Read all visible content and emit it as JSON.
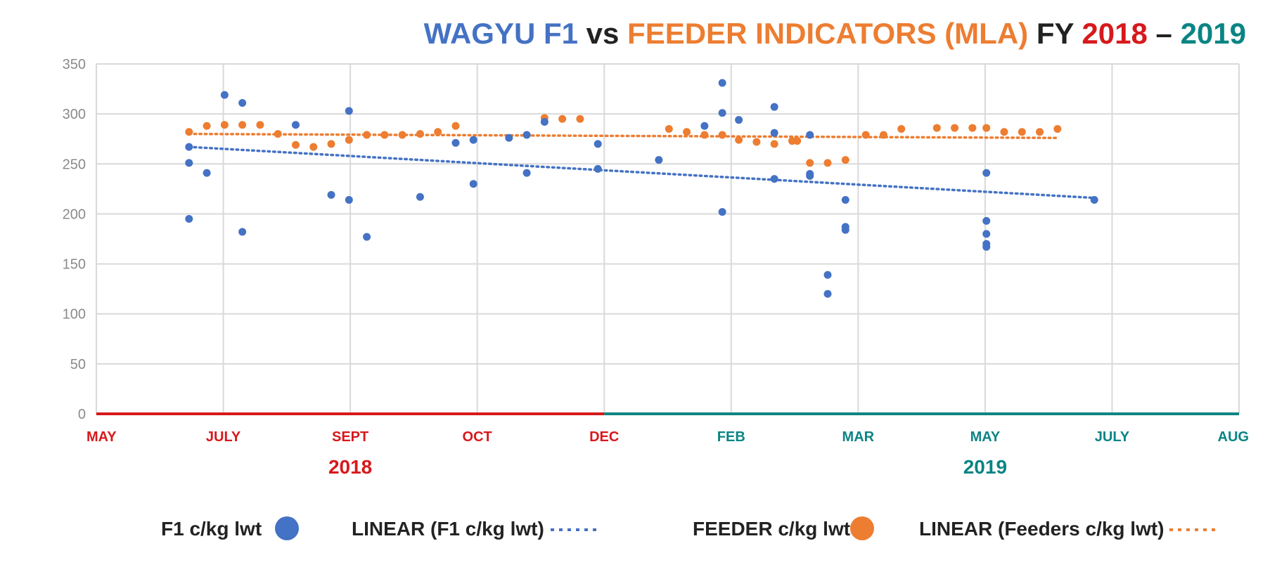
{
  "colors": {
    "f1": "#4472c4",
    "feeder": "#ed7d31",
    "year2018": "#d7191c",
    "year2019": "#0b8484",
    "dark": "#222222",
    "grid": "#d9d9d9",
    "tick": "#8a8a8a"
  },
  "title": {
    "part1": "WAGYU F1",
    "part2": " vs ",
    "part3": "FEEDER INDICATORS (MLA)",
    "part4": "FY ",
    "part5": "2018",
    "part6": " – ",
    "part7": "2019"
  },
  "chart_data": {
    "type": "scatter",
    "xlabel": "",
    "ylabel": "",
    "ylim": [
      0,
      350
    ],
    "yticks": [
      0,
      50,
      100,
      150,
      200,
      250,
      300,
      350
    ],
    "grid": true,
    "legend_position": "bottom",
    "x_ticks": [
      {
        "label": "MAY",
        "m": 0,
        "fy": "2018"
      },
      {
        "label": "JULY",
        "m": 1,
        "fy": "2018"
      },
      {
        "label": "SEPT",
        "m": 2,
        "fy": "2018"
      },
      {
        "label": "OCT",
        "m": 3,
        "fy": "2018"
      },
      {
        "label": "DEC",
        "m": 4,
        "fy": "2018"
      },
      {
        "label": "FEB",
        "m": 5,
        "fy": "2019"
      },
      {
        "label": "MAR",
        "m": 6,
        "fy": "2019"
      },
      {
        "label": "MAY",
        "m": 7,
        "fy": "2019"
      },
      {
        "label": "JULY",
        "m": 8,
        "fy": "2019"
      },
      {
        "label": "AUG",
        "m": 9,
        "fy": "2019"
      }
    ],
    "year_labels": [
      {
        "label": "2018",
        "m": 2
      },
      {
        "label": "2019",
        "m": 7
      }
    ],
    "year_split": 4,
    "series": [
      {
        "name": "F1 c/kg lwt",
        "color": "#4472c4",
        "points": [
          [
            0.73,
            267
          ],
          [
            0.73,
            251
          ],
          [
            0.73,
            195
          ],
          [
            0.87,
            241
          ],
          [
            1.01,
            319
          ],
          [
            1.15,
            311
          ],
          [
            1.15,
            182
          ],
          [
            1.57,
            289
          ],
          [
            1.85,
            219
          ],
          [
            1.99,
            303
          ],
          [
            1.99,
            214
          ],
          [
            2.13,
            177
          ],
          [
            2.55,
            217
          ],
          [
            2.83,
            271
          ],
          [
            2.97,
            274
          ],
          [
            2.97,
            230
          ],
          [
            3.25,
            276
          ],
          [
            3.39,
            279
          ],
          [
            3.39,
            241
          ],
          [
            3.53,
            292
          ],
          [
            3.95,
            270
          ],
          [
            3.95,
            245
          ],
          [
            4.43,
            254
          ],
          [
            4.79,
            288
          ],
          [
            4.93,
            331
          ],
          [
            4.93,
            301
          ],
          [
            4.93,
            202
          ],
          [
            5.06,
            294
          ],
          [
            5.34,
            307
          ],
          [
            5.34,
            281
          ],
          [
            5.34,
            235
          ],
          [
            5.62,
            279
          ],
          [
            5.62,
            240
          ],
          [
            5.62,
            238
          ],
          [
            5.76,
            139
          ],
          [
            5.76,
            120
          ],
          [
            5.9,
            214
          ],
          [
            5.9,
            187
          ],
          [
            5.9,
            184
          ],
          [
            7.01,
            241
          ],
          [
            7.01,
            193
          ],
          [
            7.01,
            180
          ],
          [
            7.01,
            170
          ],
          [
            7.01,
            167
          ],
          [
            7.86,
            214
          ]
        ]
      },
      {
        "name": "FEEDER c/kg lwt",
        "color": "#ed7d31",
        "points": [
          [
            0.73,
            282
          ],
          [
            0.87,
            288
          ],
          [
            1.01,
            289
          ],
          [
            1.15,
            289
          ],
          [
            1.29,
            289
          ],
          [
            1.43,
            280
          ],
          [
            1.57,
            269
          ],
          [
            1.71,
            267
          ],
          [
            1.85,
            270
          ],
          [
            1.99,
            274
          ],
          [
            2.13,
            279
          ],
          [
            2.27,
            279
          ],
          [
            2.41,
            279
          ],
          [
            2.55,
            280
          ],
          [
            2.69,
            282
          ],
          [
            2.83,
            288
          ],
          [
            3.53,
            296
          ],
          [
            3.67,
            295
          ],
          [
            3.81,
            295
          ],
          [
            4.51,
            285
          ],
          [
            4.65,
            282
          ],
          [
            4.79,
            279
          ],
          [
            4.93,
            279
          ],
          [
            5.06,
            274
          ],
          [
            5.2,
            272
          ],
          [
            5.34,
            270
          ],
          [
            5.48,
            273
          ],
          [
            5.52,
            273
          ],
          [
            5.62,
            251
          ],
          [
            5.76,
            251
          ],
          [
            5.9,
            254
          ],
          [
            6.06,
            279
          ],
          [
            6.2,
            279
          ],
          [
            6.34,
            285
          ],
          [
            6.62,
            286
          ],
          [
            6.76,
            286
          ],
          [
            6.9,
            286
          ],
          [
            7.01,
            286
          ],
          [
            7.15,
            282
          ],
          [
            7.29,
            282
          ],
          [
            7.43,
            282
          ],
          [
            7.57,
            285
          ]
        ]
      }
    ],
    "trendlines": [
      {
        "name": "LINEAR (F1 c/kg lwt)",
        "color": "#4472c4",
        "x0": 0.73,
        "y0": 267,
        "x1": 7.86,
        "y1": 216
      },
      {
        "name": "LINEAR (Feeders c/kg lwt)",
        "color": "#ed7d31",
        "x0": 0.73,
        "y0": 280,
        "x1": 7.57,
        "y1": 276
      }
    ]
  },
  "legend": [
    {
      "label": "F1 c/kg lwt",
      "kind": "dot",
      "color": "#4472c4"
    },
    {
      "label": "LINEAR (F1 c/kg lwt)",
      "kind": "dash",
      "color": "#4472c4"
    },
    {
      "label": "FEEDER c/kg lwt",
      "kind": "dot",
      "color": "#ed7d31"
    },
    {
      "label": "LINEAR (Feeders c/kg lwt)",
      "kind": "dash",
      "color": "#ed7d31"
    }
  ]
}
